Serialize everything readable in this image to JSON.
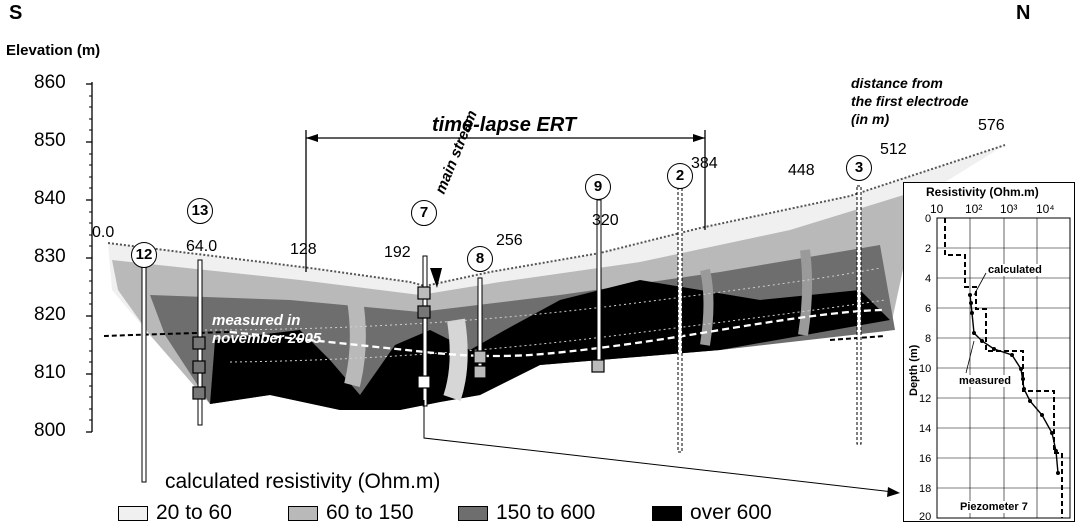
{
  "orientation": {
    "left": "S",
    "right": "N"
  },
  "y_axis": {
    "title": "Elevation (m)",
    "ticks": [
      "860",
      "850",
      "840",
      "830",
      "820",
      "810",
      "800"
    ]
  },
  "distance_note": [
    "distance from",
    "the first electrode",
    "(in m)"
  ],
  "distance_labels": [
    "0.0",
    "64.0",
    "128",
    "192",
    "256",
    "320",
    "384",
    "448",
    "512",
    "576"
  ],
  "boreholes": [
    "12",
    "13",
    "7",
    "8",
    "9",
    "2",
    "3"
  ],
  "time_lapse_label": "time-lapse ERT",
  "main_stream_label": "main stream",
  "measured_note": [
    "measured in",
    "november 2005"
  ],
  "legend": {
    "title": "calculated resistivity (Ohm.m)",
    "items": [
      {
        "label": "20 to 60",
        "color": "#f0f0f0"
      },
      {
        "label": "60 to 150",
        "color": "#b9b9b9"
      },
      {
        "label": "150 to 600",
        "color": "#6e6e6e"
      },
      {
        "label": "over 600",
        "color": "#000000"
      }
    ]
  },
  "inset": {
    "title": "Resistivity (Ohm.m)",
    "x_ticks": [
      "10",
      "10²",
      "10³",
      "10⁴"
    ],
    "y_title": "Depth (m)",
    "y_ticks": [
      "0",
      "2",
      "4",
      "6",
      "8",
      "10",
      "12",
      "14",
      "16",
      "18",
      "20"
    ],
    "calculated_label": "calculated",
    "measured_label": "measured",
    "caption": "Piezometer 7"
  }
}
